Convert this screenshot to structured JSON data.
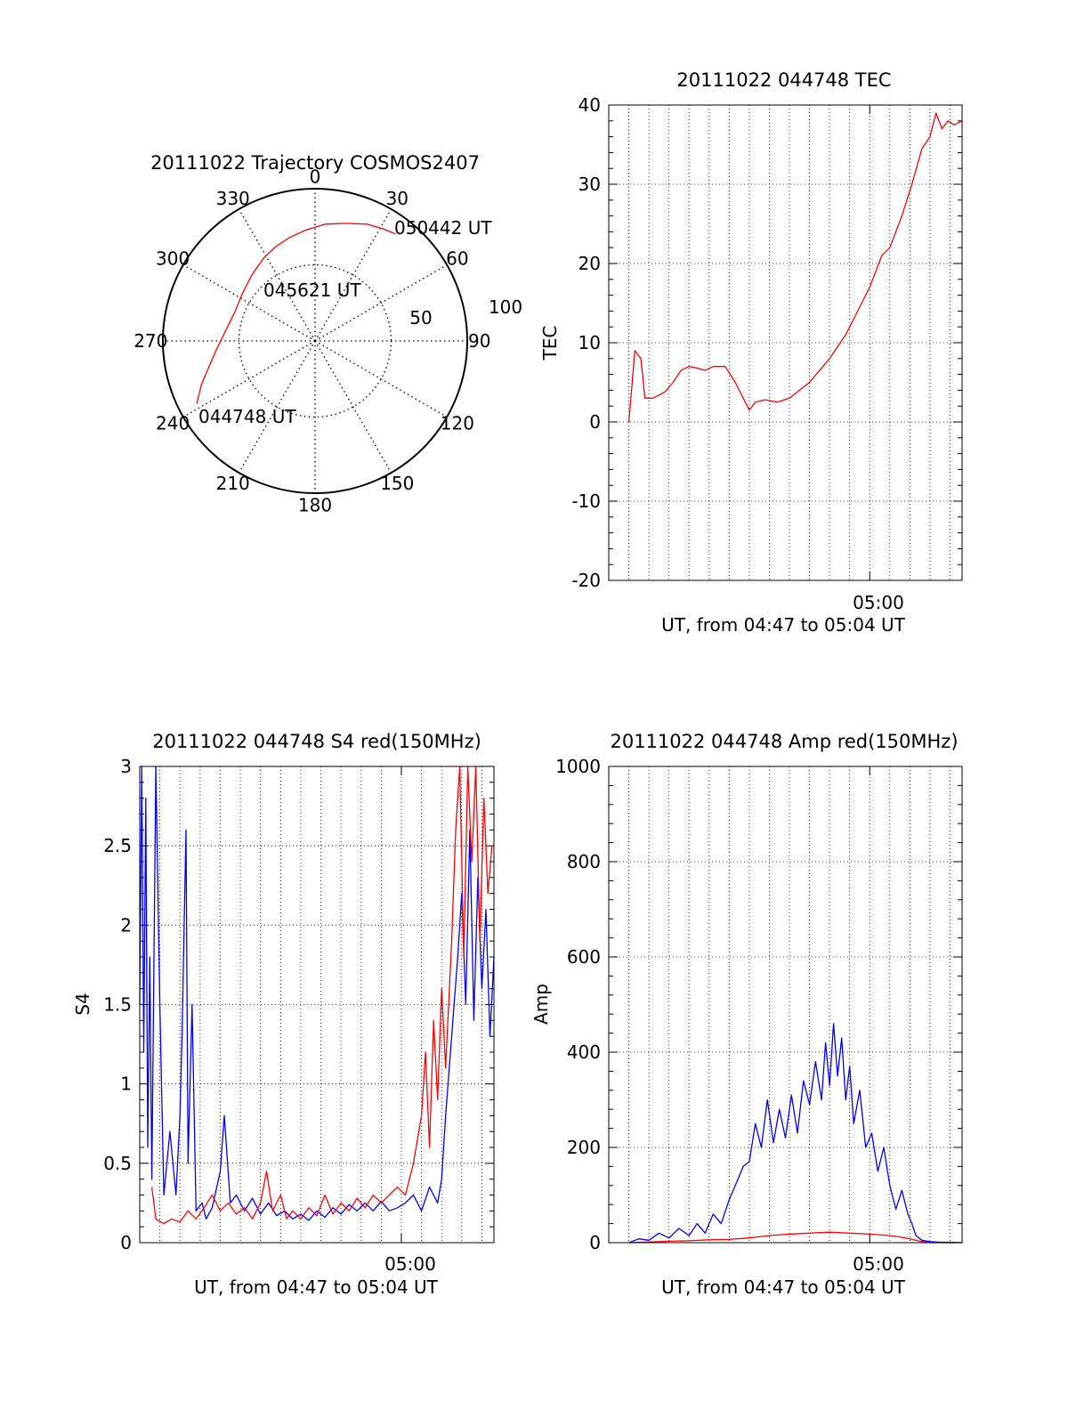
{
  "chart_data": [
    {
      "type": "polar",
      "title": "20111022 Trajectory COSMOS2407",
      "azimuth_labels": [
        "0",
        "30",
        "60",
        "90",
        "120",
        "150",
        "180",
        "210",
        "240",
        "270",
        "300",
        "330"
      ],
      "radial_labels": [
        "50",
        "100"
      ],
      "radial_range": [
        0,
        100
      ],
      "grid": true,
      "trajectory": {
        "color": "#ff0000",
        "points": [
          {
            "az": 242,
            "r": 88
          },
          {
            "az": 249,
            "r": 80
          },
          {
            "az": 256,
            "r": 72
          },
          {
            "az": 265,
            "r": 65
          },
          {
            "az": 277,
            "r": 59
          },
          {
            "az": 290,
            "r": 56
          },
          {
            "az": 303,
            "r": 57
          },
          {
            "az": 316,
            "r": 60
          },
          {
            "az": 328,
            "r": 64
          },
          {
            "az": 337,
            "r": 67
          },
          {
            "az": 346,
            "r": 70
          },
          {
            "az": 355,
            "r": 73
          },
          {
            "az": 5,
            "r": 77
          },
          {
            "az": 15,
            "r": 80
          },
          {
            "az": 24,
            "r": 84
          },
          {
            "az": 31,
            "r": 86
          },
          {
            "az": 37,
            "r": 88
          }
        ]
      },
      "annotations": [
        "050442 UT",
        "045621 UT",
        "044748 UT"
      ]
    },
    {
      "type": "line",
      "title": "20111022 044748 TEC",
      "ylabel": "TEC",
      "xlabel": "UT, from 04:47 to 05:04 UT",
      "xticklabels": [
        "05:00"
      ],
      "yticks": [
        -20,
        -10,
        0,
        10,
        20,
        30,
        40
      ],
      "ylim": [
        -20,
        40
      ],
      "xlim_min": [
        47.0,
        64.6
      ],
      "grid": true,
      "series": [
        {
          "color": "#ff0000",
          "points": [
            [
              48.0,
              0
            ],
            [
              48.3,
              9
            ],
            [
              48.6,
              8
            ],
            [
              48.8,
              3
            ],
            [
              49.2,
              3
            ],
            [
              49.8,
              3.8
            ],
            [
              50.2,
              5
            ],
            [
              50.6,
              6.5
            ],
            [
              51.0,
              7
            ],
            [
              51.4,
              6.8
            ],
            [
              51.8,
              6.5
            ],
            [
              52.2,
              7
            ],
            [
              52.8,
              7
            ],
            [
              53.3,
              5
            ],
            [
              53.8,
              2.5
            ],
            [
              54.0,
              1.5
            ],
            [
              54.3,
              2.5
            ],
            [
              54.8,
              2.8
            ],
            [
              55.4,
              2.5
            ],
            [
              56.0,
              3
            ],
            [
              57.0,
              5
            ],
            [
              58.0,
              8
            ],
            [
              58.8,
              11
            ],
            [
              59.6,
              15
            ],
            [
              60.0,
              17
            ],
            [
              60.6,
              21
            ],
            [
              61.0,
              22
            ],
            [
              61.6,
              26
            ],
            [
              62.1,
              30
            ],
            [
              62.6,
              34.5
            ],
            [
              63.0,
              36
            ],
            [
              63.3,
              39
            ],
            [
              63.6,
              37
            ],
            [
              63.9,
              38
            ],
            [
              64.2,
              37.5
            ],
            [
              64.6,
              38
            ]
          ]
        }
      ]
    },
    {
      "type": "line",
      "title": "20111022 044748 S4 red(150MHz)",
      "ylabel": "S4",
      "xlabel": "UT, from 04:47 to 05:04 UT",
      "xticklabels": [
        "05:00"
      ],
      "yticks": [
        0,
        0.5,
        1,
        1.5,
        2,
        2.5,
        3
      ],
      "ylim": [
        0,
        3
      ],
      "xlim_min": [
        47.0,
        64.6
      ],
      "grid": true,
      "series": [
        {
          "color": "#0000ff",
          "points": [
            [
              47.0,
              1.5
            ],
            [
              47.1,
              3
            ],
            [
              47.2,
              1.2
            ],
            [
              47.3,
              2.8
            ],
            [
              47.4,
              0.6
            ],
            [
              47.5,
              1.8
            ],
            [
              47.6,
              0.4
            ],
            [
              47.8,
              3
            ],
            [
              48.0,
              1.5
            ],
            [
              48.2,
              0.3
            ],
            [
              48.5,
              0.7
            ],
            [
              48.8,
              0.3
            ],
            [
              49.0,
              0.8
            ],
            [
              49.1,
              1.3
            ],
            [
              49.3,
              2.6
            ],
            [
              49.4,
              0.5
            ],
            [
              49.6,
              1.5
            ],
            [
              49.8,
              0.2
            ],
            [
              50.1,
              0.25
            ],
            [
              50.3,
              0.15
            ],
            [
              50.6,
              0.22
            ],
            [
              51.0,
              0.45
            ],
            [
              51.2,
              0.8
            ],
            [
              51.5,
              0.25
            ],
            [
              51.8,
              0.3
            ],
            [
              52.2,
              0.2
            ],
            [
              52.6,
              0.28
            ],
            [
              53.0,
              0.18
            ],
            [
              53.4,
              0.25
            ],
            [
              53.8,
              0.17
            ],
            [
              54.2,
              0.2
            ],
            [
              54.6,
              0.15
            ],
            [
              55.0,
              0.18
            ],
            [
              55.4,
              0.14
            ],
            [
              55.8,
              0.2
            ],
            [
              56.2,
              0.16
            ],
            [
              56.6,
              0.22
            ],
            [
              57.0,
              0.18
            ],
            [
              57.4,
              0.24
            ],
            [
              57.8,
              0.2
            ],
            [
              58.2,
              0.25
            ],
            [
              58.6,
              0.2
            ],
            [
              59.0,
              0.26
            ],
            [
              59.4,
              0.2
            ],
            [
              59.8,
              0.22
            ],
            [
              60.2,
              0.25
            ],
            [
              60.6,
              0.3
            ],
            [
              61.0,
              0.2
            ],
            [
              61.4,
              0.35
            ],
            [
              61.8,
              0.25
            ],
            [
              62.0,
              0.4
            ],
            [
              62.2,
              0.8
            ],
            [
              62.5,
              1.3
            ],
            [
              62.8,
              1.8
            ],
            [
              63.0,
              2.2
            ],
            [
              63.2,
              1.5
            ],
            [
              63.4,
              2.6
            ],
            [
              63.6,
              1.4
            ],
            [
              63.8,
              2.3
            ],
            [
              64.0,
              1.6
            ],
            [
              64.2,
              2.1
            ],
            [
              64.4,
              1.3
            ],
            [
              64.6,
              1.8
            ]
          ]
        },
        {
          "color": "#ff0000",
          "points": [
            [
              47.6,
              0.35
            ],
            [
              47.8,
              0.15
            ],
            [
              48.2,
              0.12
            ],
            [
              48.6,
              0.15
            ],
            [
              49.0,
              0.13
            ],
            [
              49.4,
              0.2
            ],
            [
              49.8,
              0.15
            ],
            [
              50.2,
              0.22
            ],
            [
              50.6,
              0.3
            ],
            [
              51.0,
              0.2
            ],
            [
              51.4,
              0.25
            ],
            [
              51.8,
              0.18
            ],
            [
              52.2,
              0.22
            ],
            [
              52.6,
              0.15
            ],
            [
              53.0,
              0.25
            ],
            [
              53.3,
              0.45
            ],
            [
              53.6,
              0.2
            ],
            [
              54.0,
              0.3
            ],
            [
              54.3,
              0.15
            ],
            [
              54.6,
              0.2
            ],
            [
              55.0,
              0.15
            ],
            [
              55.4,
              0.22
            ],
            [
              55.8,
              0.17
            ],
            [
              56.2,
              0.3
            ],
            [
              56.6,
              0.18
            ],
            [
              57.0,
              0.25
            ],
            [
              57.4,
              0.2
            ],
            [
              57.8,
              0.28
            ],
            [
              58.2,
              0.22
            ],
            [
              58.6,
              0.3
            ],
            [
              59.0,
              0.25
            ],
            [
              59.4,
              0.3
            ],
            [
              59.8,
              0.35
            ],
            [
              60.2,
              0.3
            ],
            [
              60.6,
              0.5
            ],
            [
              61.0,
              0.8
            ],
            [
              61.2,
              1.2
            ],
            [
              61.4,
              0.6
            ],
            [
              61.6,
              1.4
            ],
            [
              61.8,
              0.9
            ],
            [
              62.0,
              1.6
            ],
            [
              62.2,
              1.1
            ],
            [
              62.5,
              1.9
            ],
            [
              62.7,
              2.6
            ],
            [
              62.9,
              3
            ],
            [
              63.1,
              1.8
            ],
            [
              63.3,
              3
            ],
            [
              63.5,
              2.4
            ],
            [
              63.7,
              3
            ],
            [
              63.9,
              1.9
            ],
            [
              64.1,
              2.8
            ],
            [
              64.3,
              2.2
            ],
            [
              64.5,
              2.5
            ]
          ]
        }
      ]
    },
    {
      "type": "line",
      "title": "20111022 044748 Amp red(150MHz)",
      "ylabel": "Amp",
      "xlabel": "UT, from 04:47 to 05:04 UT",
      "xticklabels": [
        "05:00"
      ],
      "yticks": [
        0,
        200,
        400,
        600,
        800,
        1000
      ],
      "ylim": [
        0,
        1000
      ],
      "xlim_min": [
        47.0,
        64.6
      ],
      "grid": true,
      "series": [
        {
          "color": "#0000ff",
          "points": [
            [
              48.0,
              0
            ],
            [
              48.5,
              8
            ],
            [
              49.0,
              5
            ],
            [
              49.5,
              20
            ],
            [
              50.0,
              10
            ],
            [
              50.5,
              30
            ],
            [
              51.0,
              15
            ],
            [
              51.4,
              40
            ],
            [
              51.8,
              20
            ],
            [
              52.2,
              60
            ],
            [
              52.6,
              40
            ],
            [
              53.0,
              90
            ],
            [
              53.4,
              130
            ],
            [
              53.7,
              160
            ],
            [
              54.0,
              170
            ],
            [
              54.3,
              250
            ],
            [
              54.6,
              200
            ],
            [
              54.9,
              300
            ],
            [
              55.2,
              210
            ],
            [
              55.5,
              280
            ],
            [
              55.8,
              220
            ],
            [
              56.1,
              310
            ],
            [
              56.4,
              230
            ],
            [
              56.7,
              340
            ],
            [
              57.0,
              290
            ],
            [
              57.3,
              380
            ],
            [
              57.6,
              300
            ],
            [
              57.8,
              420
            ],
            [
              58.0,
              330
            ],
            [
              58.2,
              460
            ],
            [
              58.4,
              350
            ],
            [
              58.6,
              430
            ],
            [
              58.8,
              300
            ],
            [
              59.0,
              370
            ],
            [
              59.2,
              250
            ],
            [
              59.5,
              320
            ],
            [
              59.8,
              200
            ],
            [
              60.1,
              230
            ],
            [
              60.4,
              150
            ],
            [
              60.7,
              200
            ],
            [
              61.0,
              120
            ],
            [
              61.3,
              70
            ],
            [
              61.6,
              110
            ],
            [
              61.9,
              60
            ],
            [
              62.1,
              40
            ],
            [
              62.3,
              15
            ],
            [
              62.6,
              5
            ],
            [
              63.0,
              2
            ],
            [
              63.5,
              1
            ],
            [
              64.0,
              1
            ],
            [
              64.6,
              0
            ]
          ]
        },
        {
          "color": "#ff0000",
          "points": [
            [
              48.0,
              0
            ],
            [
              50.0,
              3
            ],
            [
              51.0,
              4
            ],
            [
              52.0,
              6
            ],
            [
              53.0,
              7
            ],
            [
              54.0,
              10
            ],
            [
              55.0,
              15
            ],
            [
              56.0,
              18
            ],
            [
              57.0,
              20
            ],
            [
              58.0,
              22
            ],
            [
              59.0,
              20
            ],
            [
              60.0,
              18
            ],
            [
              61.0,
              15
            ],
            [
              61.5,
              12
            ],
            [
              62.0,
              8
            ],
            [
              62.5,
              3
            ],
            [
              63.0,
              0
            ],
            [
              64.6,
              0
            ]
          ]
        }
      ]
    }
  ]
}
